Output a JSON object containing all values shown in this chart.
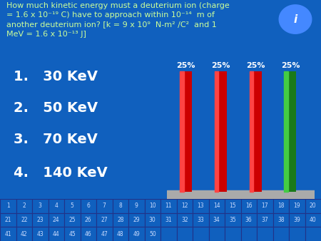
{
  "background_color": "#1060be",
  "bar_values": [
    25,
    25,
    25,
    25
  ],
  "bar_colors": [
    "#cc0000",
    "#cc0000",
    "#cc0000",
    "#1a7a1a"
  ],
  "bar_highlight_colors": [
    "#ff4444",
    "#ff4444",
    "#ff4444",
    "#44cc44"
  ],
  "bar_labels": [
    "25%",
    "25%",
    "25%",
    "25%"
  ],
  "answer_labels": [
    "1.   30 KeV",
    "2.   50 KeV",
    "3.   70 KeV",
    "4.   140 KeV"
  ],
  "title_color": "#ccff99",
  "answer_color": "#ffffff",
  "bar_label_color": "#ffffff",
  "answer_fontsize": 14,
  "title_fontsize": 8,
  "grid_rows": [
    [
      1,
      2,
      3,
      4,
      5,
      6,
      7,
      8,
      9,
      10,
      11,
      12,
      13,
      14,
      15,
      16,
      17,
      18,
      19,
      20
    ],
    [
      21,
      22,
      23,
      24,
      25,
      26,
      27,
      28,
      29,
      30,
      31,
      32,
      33,
      34,
      35,
      36,
      37,
      38,
      39,
      40
    ],
    [
      41,
      42,
      43,
      44,
      45,
      46,
      47,
      48,
      49,
      50
    ]
  ],
  "grid_text_color": "#ccddff",
  "base_color": "#aaaaaa",
  "icon_color": "#4488ff"
}
